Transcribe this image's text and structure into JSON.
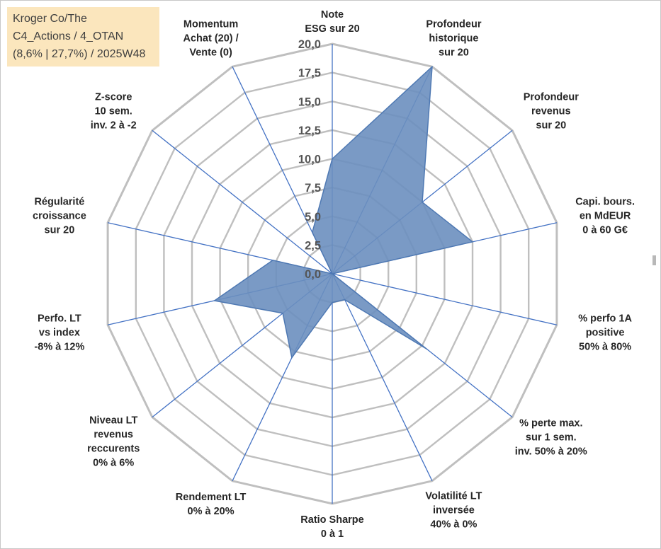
{
  "title_box": {
    "line1": "Kroger Co/The",
    "line2": "C4_Actions / 4_OTAN",
    "line3": "(8,6% | 27,7%) / 2025W48"
  },
  "colors": {
    "grid": "#bfbfbf",
    "axis": "#4472c4",
    "fill": "#6b8fbf",
    "stroke": "#4f79b3",
    "title_bg": "#fbe6bd"
  },
  "chart_data": {
    "type": "radar",
    "r_min": 0,
    "r_max": 20,
    "r_step": 2.5,
    "tick_labels": [
      "0,0",
      "2,5",
      "5,0",
      "7,5",
      "10,0",
      "12,5",
      "15,0",
      "17,5",
      "20,0"
    ],
    "categories": [
      {
        "label": [
          "Note",
          "ESG sur 20"
        ],
        "value": 10
      },
      {
        "label": [
          "Profondeur",
          "historique",
          "sur 20"
        ],
        "value": 20
      },
      {
        "label": [
          "Profondeur",
          "revenus",
          "sur 20"
        ],
        "value": 10
      },
      {
        "label": [
          "Capi. bours.",
          "en MdEUR",
          "0 à 60 G€"
        ],
        "value": 12.5
      },
      {
        "label": [
          "% perfo 1A",
          "positive",
          "50% à 80%"
        ],
        "value": 0
      },
      {
        "label": [
          "% perte max.",
          "sur 1 sem.",
          "inv. 50% à 20%"
        ],
        "value": 10.5
      },
      {
        "label": [
          "Volatilité LT",
          "inversée",
          "40% à 0%"
        ],
        "value": 2.5
      },
      {
        "label": [
          "Ratio Sharpe",
          "0 à 1"
        ],
        "value": 2.5
      },
      {
        "label": [
          "Rendement LT",
          "0% à 20%"
        ],
        "value": 8.1
      },
      {
        "label": [
          "Niveau LT",
          "revenus",
          "reccurents",
          "0% à 6%"
        ],
        "value": 5.5
      },
      {
        "label": [
          "Perfo. LT",
          "vs index",
          "-8% à 12%"
        ],
        "value": 10.5
      },
      {
        "label": [
          "Régularité",
          "croissance",
          "sur 20"
        ],
        "value": 5.3
      },
      {
        "label": [
          "Z-score",
          "10 sem.",
          "inv. 2 à -2"
        ],
        "value": 0
      },
      {
        "label": [
          "Momentum",
          "Achat (20) /",
          "Vente (0)"
        ],
        "value": 4
      }
    ]
  }
}
